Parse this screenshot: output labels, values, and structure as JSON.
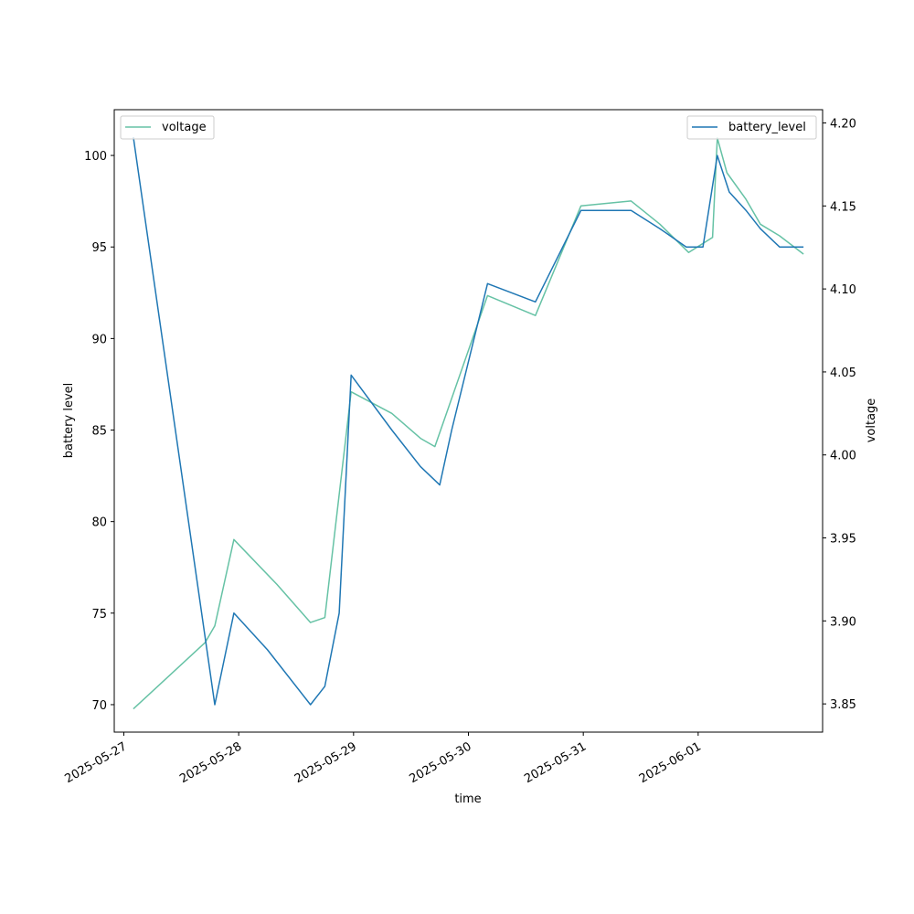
{
  "chart_data": {
    "type": "line",
    "title": "",
    "xlabel": "time",
    "ylabel_left": "battery level",
    "ylabel_right": "voltage",
    "x_ticks": [
      "2025-05-27",
      "2025-05-28",
      "2025-05-29",
      "2025-05-30",
      "2025-05-31",
      "2025-06-01"
    ],
    "y_left_ticks": [
      "70",
      "75",
      "80",
      "85",
      "90",
      "95",
      "100"
    ],
    "y_right_ticks": [
      "3.85",
      "3.90",
      "3.95",
      "4.00",
      "4.05",
      "4.10",
      "4.15",
      "4.20"
    ],
    "x_range": [
      "2025-05-26 22:00",
      "2025-06-02 02:00"
    ],
    "y_left_range": [
      68.5,
      102.5
    ],
    "y_right_range": [
      3.833,
      4.208
    ],
    "grid": false,
    "series": [
      {
        "name": "battery_level",
        "axis": "left",
        "color": "#1f77b4",
        "legend_position": "upper right",
        "points": [
          [
            "2025-05-27 02:00",
            101
          ],
          [
            "2025-05-27 19:00",
            70
          ],
          [
            "2025-05-27 23:00",
            75
          ],
          [
            "2025-05-28 06:00",
            73
          ],
          [
            "2025-05-28 15:00",
            70
          ],
          [
            "2025-05-28 18:00",
            71
          ],
          [
            "2025-05-28 21:00",
            75
          ],
          [
            "2025-05-28 23:30",
            88
          ],
          [
            "2025-05-29 08:00",
            85
          ],
          [
            "2025-05-29 14:00",
            83
          ],
          [
            "2025-05-29 18:00",
            82
          ],
          [
            "2025-05-29 20:30",
            85
          ],
          [
            "2025-05-30 04:00",
            93
          ],
          [
            "2025-05-30 14:00",
            92
          ],
          [
            "2025-05-30 23:30",
            97
          ],
          [
            "2025-05-31 10:00",
            97
          ],
          [
            "2025-05-31 16:00",
            96
          ],
          [
            "2025-05-31 21:30",
            95
          ],
          [
            "2025-06-01 01:00",
            95
          ],
          [
            "2025-06-01 04:00",
            100
          ],
          [
            "2025-06-01 06:30",
            98
          ],
          [
            "2025-06-01 10:00",
            97
          ],
          [
            "2025-06-01 13:00",
            96
          ],
          [
            "2025-06-01 17:00",
            95
          ],
          [
            "2025-06-01 22:00",
            95
          ]
        ]
      },
      {
        "name": "voltage",
        "axis": "right",
        "color": "#66c2a5",
        "legend_position": "upper left",
        "points": [
          [
            "2025-05-27 02:00",
            3.847
          ],
          [
            "2025-05-27 17:00",
            3.887
          ],
          [
            "2025-05-27 19:00",
            3.897
          ],
          [
            "2025-05-27 23:00",
            3.949
          ],
          [
            "2025-05-28 08:00",
            3.922
          ],
          [
            "2025-05-28 15:00",
            3.899
          ],
          [
            "2025-05-28 18:00",
            3.902
          ],
          [
            "2025-05-28 23:30",
            4.038
          ],
          [
            "2025-05-29 08:00",
            4.025
          ],
          [
            "2025-05-29 14:00",
            4.01
          ],
          [
            "2025-05-29 17:00",
            4.005
          ],
          [
            "2025-05-30 04:00",
            4.096
          ],
          [
            "2025-05-30 14:00",
            4.084
          ],
          [
            "2025-05-30 23:30",
            4.15
          ],
          [
            "2025-05-31 10:00",
            4.153
          ],
          [
            "2025-05-31 16:00",
            4.139
          ],
          [
            "2025-05-31 22:00",
            4.122
          ],
          [
            "2025-06-01 03:00",
            4.131
          ],
          [
            "2025-06-01 04:00",
            4.191
          ],
          [
            "2025-06-01 06:00",
            4.17
          ],
          [
            "2025-06-01 10:00",
            4.154
          ],
          [
            "2025-06-01 13:00",
            4.139
          ],
          [
            "2025-06-01 17:00",
            4.132
          ],
          [
            "2025-06-01 22:00",
            4.121
          ]
        ]
      }
    ]
  }
}
